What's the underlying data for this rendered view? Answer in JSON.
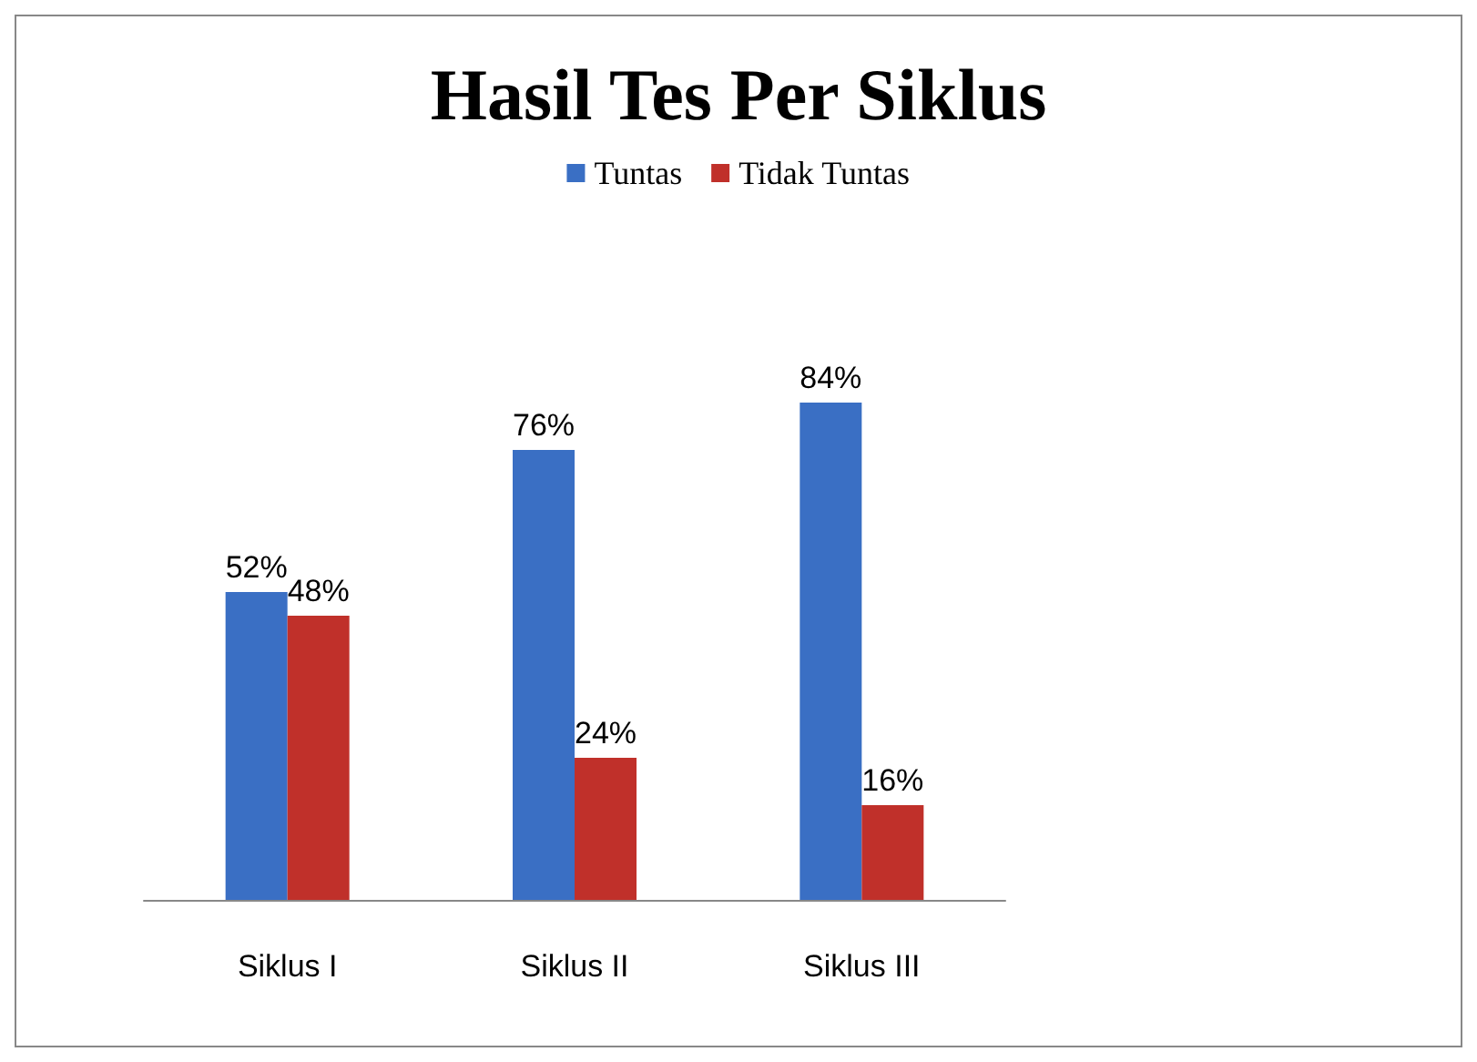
{
  "chart_data": {
    "type": "bar",
    "title": "Hasil Tes Per Siklus",
    "categories": [
      "Siklus I",
      "Siklus II",
      "Siklus III"
    ],
    "series": [
      {
        "name": "Tuntas",
        "color": "#3a6fc4",
        "values": [
          52,
          76,
          84
        ],
        "value_labels": [
          "52%",
          "76%",
          "84%"
        ]
      },
      {
        "name": "Tidak Tuntas",
        "color": "#c0302a",
        "values": [
          48,
          24,
          16
        ],
        "value_labels": [
          "48%",
          "24%",
          "16%"
        ]
      }
    ],
    "legend": "top",
    "grid": false
  }
}
